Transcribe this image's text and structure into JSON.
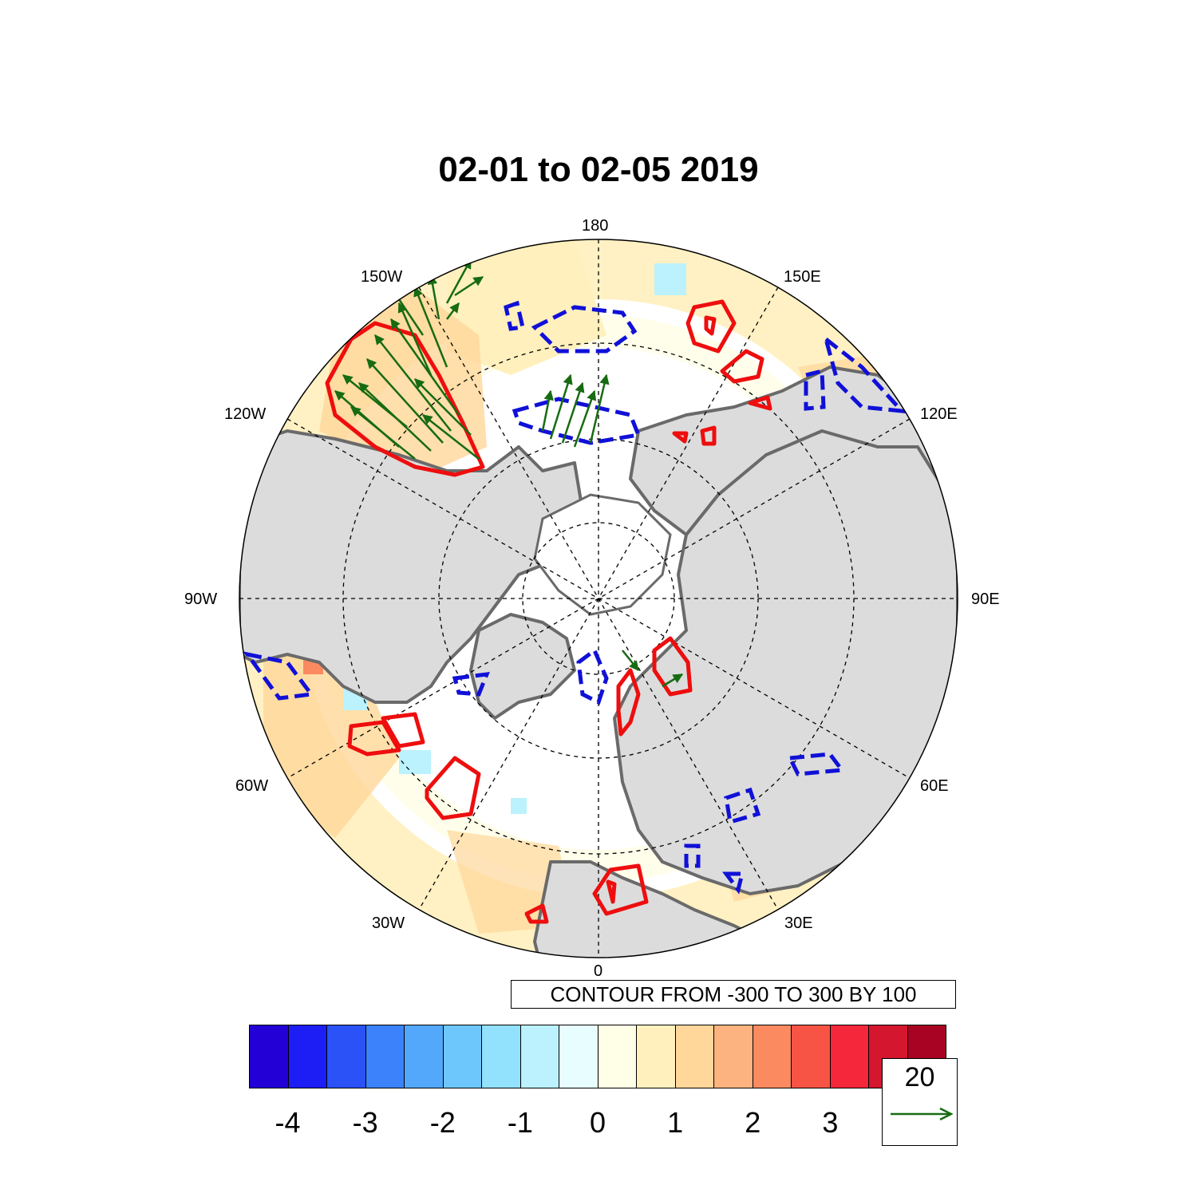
{
  "title": "02-01 to 02-05 2019",
  "longitude_labels": {
    "lon180": "180",
    "lon150e": "150E",
    "lon120e": "120E",
    "lon90e": "90E",
    "lon60e": "60E",
    "lon30e": "30E",
    "lon0": "0",
    "lon30w": "30W",
    "lon60w": "60W",
    "lon90w": "90W",
    "lon120w": "120W",
    "lon150w": "150W"
  },
  "contour_note": "CONTOUR FROM -300 TO 300 BY 100",
  "colorbar": {
    "colors": [
      "#2200d6",
      "#1d1ef5",
      "#2b52f7",
      "#3c82fa",
      "#54a8fc",
      "#6ec7fc",
      "#92e1fd",
      "#bbf2fd",
      "#e8fdff",
      "#fffee6",
      "#fff0bd",
      "#ffd79a",
      "#fcb37f",
      "#fb8a60",
      "#f85445",
      "#f4283a",
      "#d4162e",
      "#a80322"
    ],
    "labels": [
      "-4",
      "-3",
      "-2",
      "-1",
      "0",
      "1",
      "2",
      "3"
    ]
  },
  "vector_reference": {
    "value": "20",
    "color": "#176b12"
  },
  "colors": {
    "land": "#dcdcdc",
    "coast": "#6a6a6a",
    "positive_contour": "#ee0e0e",
    "negative_contour": "#1010d8",
    "vectors": "#176b12"
  }
}
